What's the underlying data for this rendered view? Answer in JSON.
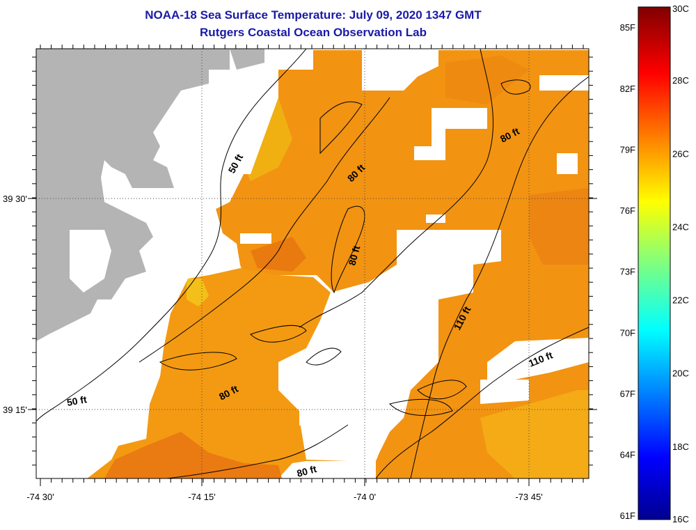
{
  "title": "NOAA-18 Sea Surface Temperature:  July 09, 2020 1347 GMT",
  "subtitle": "Rutgers Coastal Ocean Observation Lab",
  "map": {
    "x_ticks": [
      "-74 30'",
      "-74 15'",
      "-74 0'",
      "-73 45'"
    ],
    "y_ticks": [
      "39 30'",
      "39 15'"
    ],
    "land_color": "#b4b4b4",
    "no_data_color": "#ffffff"
  },
  "contour_labels": [
    {
      "text": "50 ft"
    },
    {
      "text": "80 ft"
    },
    {
      "text": "80 ft"
    },
    {
      "text": "80 ft"
    },
    {
      "text": "110 ft"
    },
    {
      "text": "110 ft"
    },
    {
      "text": "80 ft"
    },
    {
      "text": "50 ft"
    },
    {
      "text": "80 ft"
    }
  ],
  "colorbar": {
    "fahrenheit_labels": [
      "85F",
      "82F",
      "79F",
      "76F",
      "73F",
      "70F",
      "67F",
      "64F",
      "61F"
    ],
    "celsius_labels": [
      "30C",
      "28C",
      "26C",
      "24C",
      "22C",
      "20C",
      "18C",
      "16C"
    ],
    "min_c": 16,
    "max_c": 30
  }
}
